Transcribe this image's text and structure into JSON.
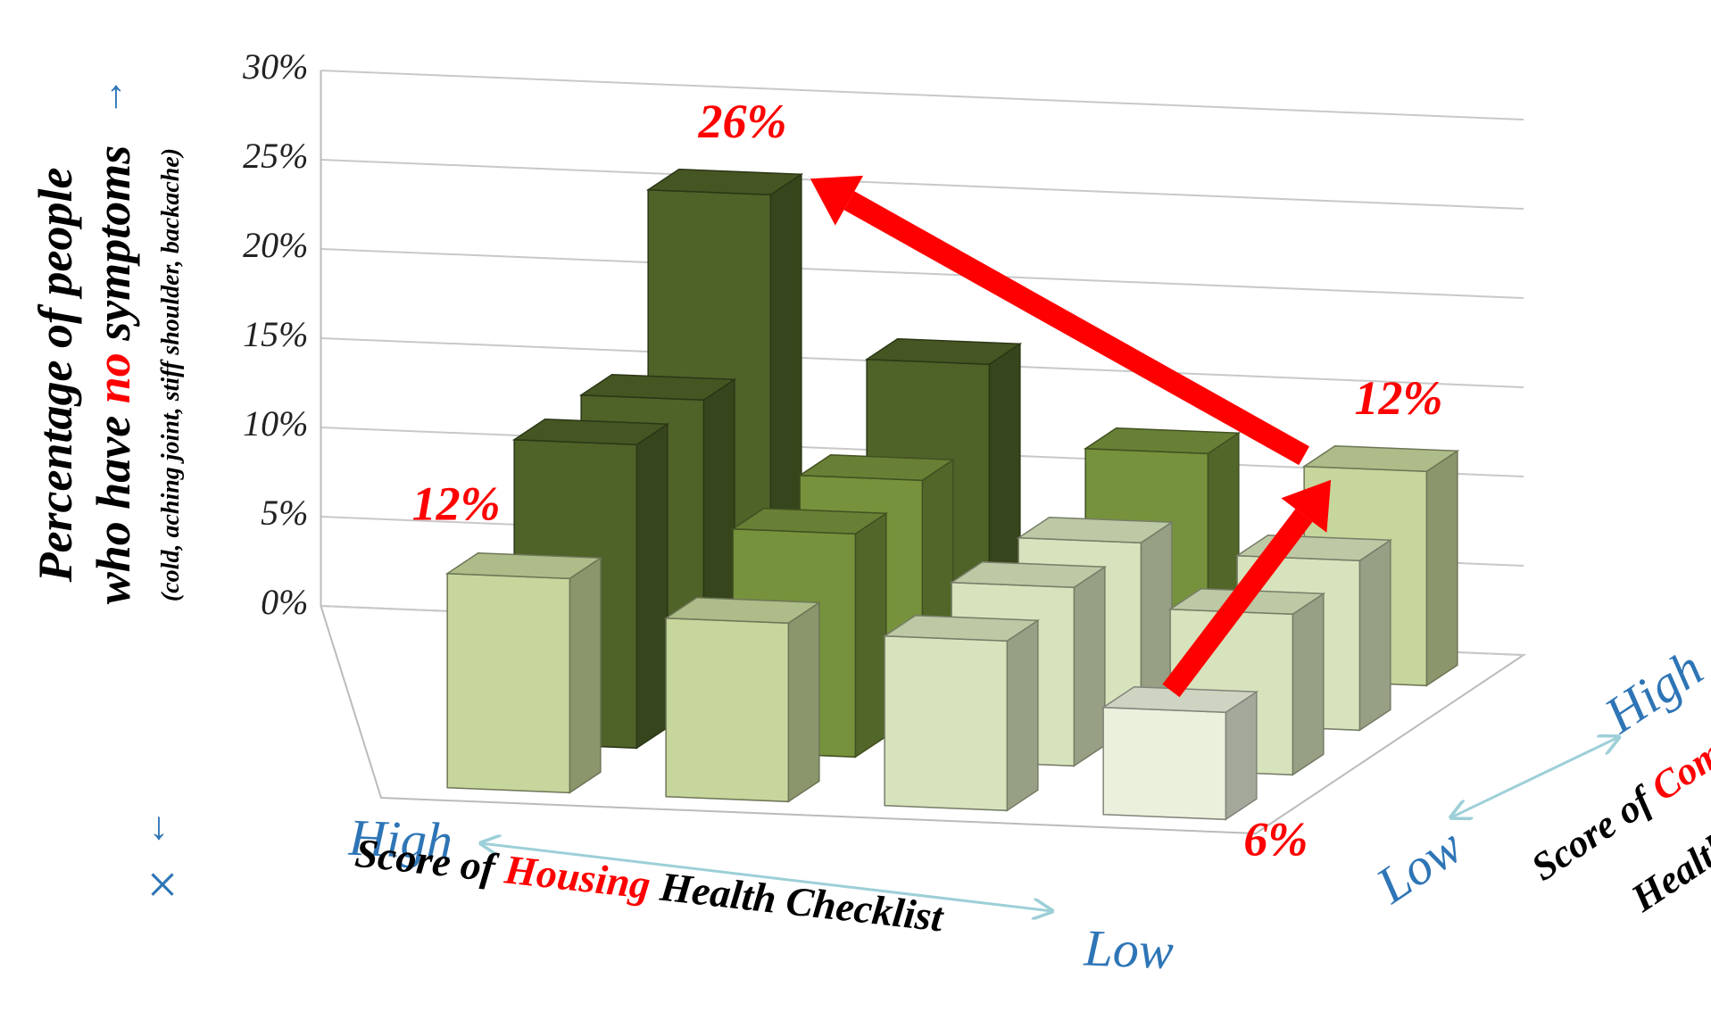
{
  "chart_data": {
    "type": "bar3d",
    "y_label": {
      "line1": "Percentage of people",
      "line2_before": "who have ",
      "line2_highlight": "no",
      "line2_after": " symptoms",
      "subtitle": "(cold, aching joint, stiff shoulder, backache)",
      "arrow_up": "↑",
      "arrow_down": "↓",
      "cross": "×"
    },
    "x_axis": {
      "high": "High",
      "low": "Low",
      "label_before": "Score of ",
      "label_highlight": "Housing",
      "label_after": " Health Checklist"
    },
    "depth_axis": {
      "high": "High",
      "low": "Low",
      "label_before": "Score of ",
      "label_highlight": "Community",
      "label_line2": "Health Checklist"
    },
    "categories": [
      null,
      null,
      null,
      null
    ],
    "series": [
      {
        "values": [
          12,
          10,
          9.5,
          6
        ],
        "colors": [
          "#c6d69c",
          "#c6d69c",
          "#d7e3bc",
          "#eaf0dc"
        ],
        "value_labels": [
          "12%",
          null,
          null,
          "6%"
        ]
      },
      {
        "values": [
          17,
          12.5,
          10,
          9
        ],
        "colors": [
          "#4f6228",
          "#76923c",
          "#d7e3bc",
          "#d7e3bc"
        ]
      },
      {
        "values": [
          17,
          13,
          10,
          9.5
        ],
        "colors": [
          "#4f6228",
          "#76923c",
          "#d7e3bc",
          "#d7e3bc"
        ]
      },
      {
        "values": [
          26,
          17,
          12.5,
          12
        ],
        "colors": [
          "#4f6228",
          "#4f6228",
          "#76923c",
          "#c6d69c"
        ],
        "value_labels": [
          "26%",
          null,
          null,
          "12%"
        ]
      }
    ],
    "ylim": [
      0,
      30
    ],
    "yticks": [
      {
        "value": 0,
        "label": "0%"
      },
      {
        "value": 5,
        "label": "5%"
      },
      {
        "value": 10,
        "label": "10%"
      },
      {
        "value": 15,
        "label": "15%"
      },
      {
        "value": 20,
        "label": "20%"
      },
      {
        "value": 25,
        "label": "25%"
      },
      {
        "value": 30,
        "label": "30%"
      }
    ],
    "grid": true
  }
}
